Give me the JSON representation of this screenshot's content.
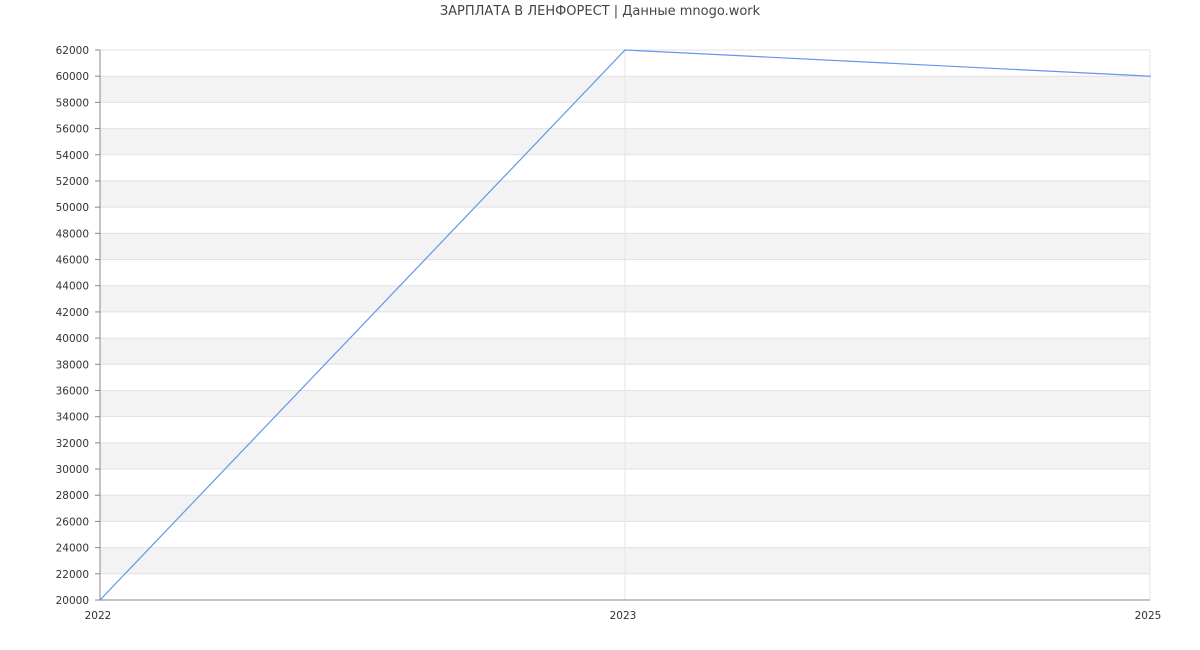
{
  "chart_data": {
    "type": "line",
    "title": "ЗАРПЛАТА В  ЛЕНФОРЕСТ | Данные mnogo.work",
    "xlabel": "",
    "ylabel": "",
    "categories": [
      "2022",
      "2023",
      "2025"
    ],
    "series": [
      {
        "values": [
          20000,
          62000,
          60000
        ],
        "color": "#6495ed"
      }
    ],
    "ylim": [
      20000,
      62000
    ],
    "ytick_step": 2000,
    "grid": true,
    "alternating_bands": true,
    "band_color": "#f3f3f3",
    "legend": "none"
  }
}
